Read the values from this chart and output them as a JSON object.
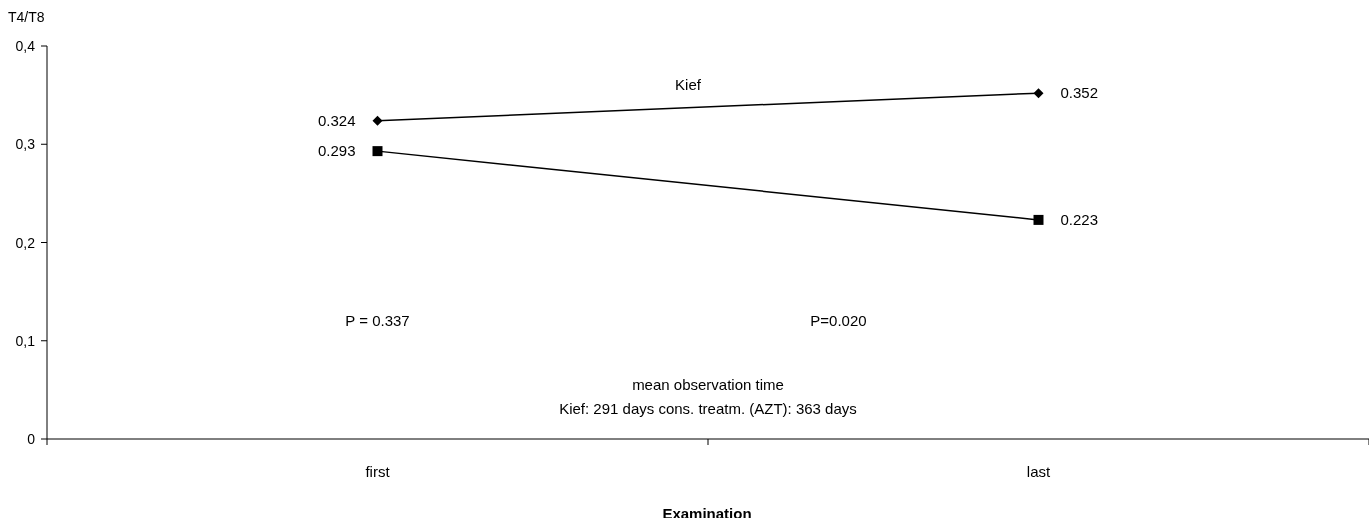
{
  "chart_data": {
    "type": "line",
    "xlabel": "Examination",
    "ylabel": "T4/T8",
    "categories": [
      "first",
      "last"
    ],
    "series": [
      {
        "name": "Kief",
        "color": "#000000",
        "values": [
          0.324,
          0.352
        ],
        "marker": "diamond"
      },
      {
        "color": "#000000",
        "values": [
          0.293,
          0.223
        ],
        "marker": "square"
      }
    ],
    "ylim": [
      0,
      0.4
    ],
    "yticks": [
      {
        "value": 0,
        "label": "0"
      },
      {
        "value": 0.1,
        "label": "0,1"
      },
      {
        "value": 0.2,
        "label": "0,2"
      },
      {
        "value": 0.3,
        "label": "0,3"
      },
      {
        "value": 0.4,
        "label": "0,4"
      }
    ],
    "data_labels": true,
    "grid": false,
    "annotations": [
      "P = 0.337",
      "P=0.020",
      "mean observation time",
      "Kief: 291 days   cons. treatm. (AZT): 363 days"
    ]
  }
}
